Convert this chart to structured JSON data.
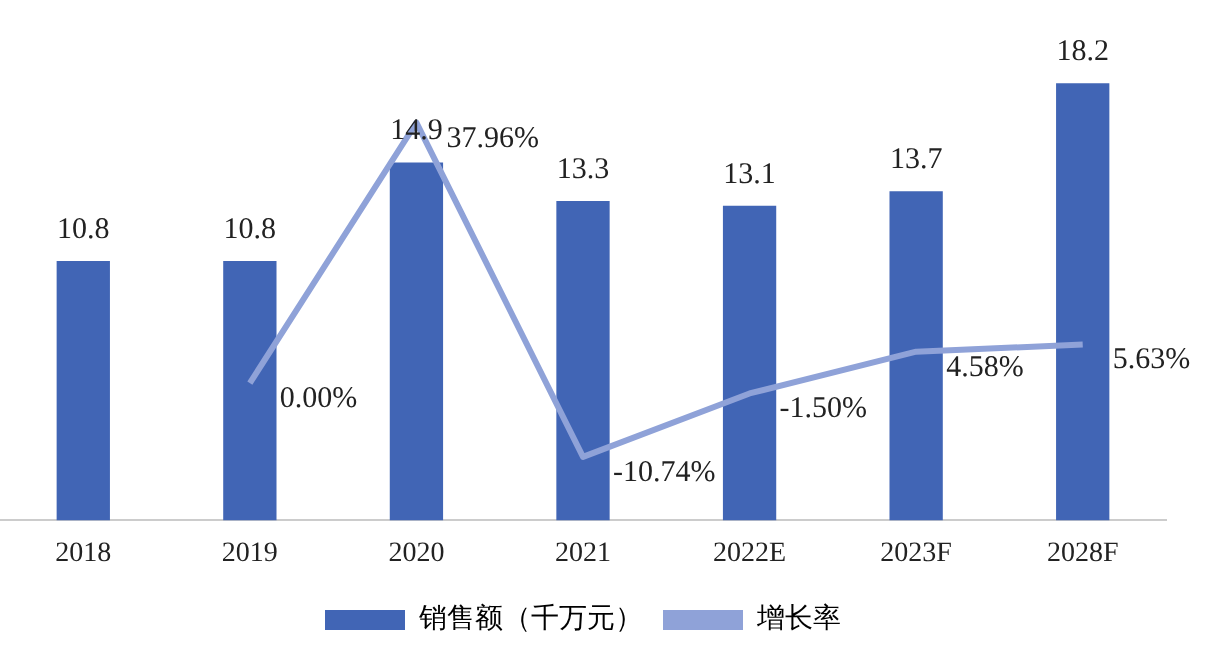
{
  "chart_data": {
    "type": "bar",
    "categories": [
      "2018",
      "2019",
      "2020",
      "2021",
      "2022E",
      "2023F",
      "2028F"
    ],
    "series": [
      {
        "name": "销售额（千万元）",
        "color": "#4165b5",
        "values": [
          10.8,
          10.8,
          14.9,
          13.3,
          13.1,
          13.7,
          18.2
        ],
        "value_labels": [
          "10.8",
          "10.8",
          "14.9",
          "13.3",
          "13.1",
          "13.7",
          "18.2"
        ]
      },
      {
        "name": "增长率",
        "type": "line",
        "axis": "y2",
        "color": "#8fa2d8",
        "values": [
          null,
          0.0,
          37.96,
          -10.74,
          -1.5,
          4.58,
          5.63
        ],
        "value_labels": [
          null,
          "0.00%",
          "37.96%",
          "-10.74%",
          "-1.50%",
          "4.58%",
          "5.63%"
        ]
      }
    ],
    "tick_labels": "x",
    "grid": false,
    "legend": "bottom",
    "marker": "none"
  }
}
